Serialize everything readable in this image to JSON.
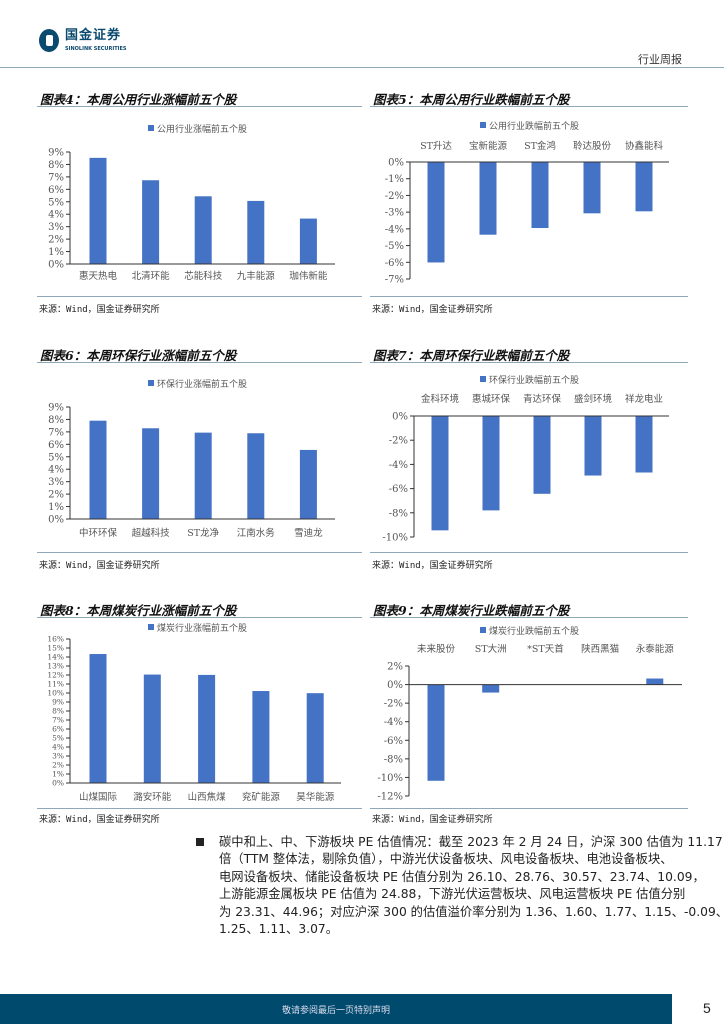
{
  "header": {
    "logo_cn": "国金证券",
    "logo_en": "SINOLINK SECURITIES",
    "doc_type": "行业周报"
  },
  "accent_color": "#4472c4",
  "chart_data": [
    {
      "type": "bar",
      "title": "图表4：本周公用行业涨幅前五个股",
      "legend": "公用行业涨幅前五个股",
      "categories": [
        "惠天热电",
        "北清环能",
        "芯能科技",
        "九丰能源",
        "珈伟新能"
      ],
      "values": [
        8.53,
        6.73,
        5.44,
        5.07,
        3.65
      ],
      "ylim": [
        0,
        9
      ],
      "ystep": 1,
      "unit": "%",
      "ticks": [
        "0%",
        "1%",
        "2%",
        "3%",
        "4%",
        "5%",
        "6%",
        "7%",
        "8%",
        "9%"
      ],
      "source": "来源：Wind，国金证券研究所"
    },
    {
      "type": "bar",
      "title": "图表5：本周公用行业跌幅前五个股",
      "legend": "公用行业跌幅前五个股",
      "categories": [
        "ST升达",
        "宝新能源",
        "ST金鸿",
        "聆达股份",
        "协鑫能科"
      ],
      "values": [
        -6.01,
        -4.35,
        -3.95,
        -3.07,
        -2.95
      ],
      "ylim": [
        -7,
        0
      ],
      "ystep": 1,
      "unit": "%",
      "ticks": [
        "-7%",
        "-6%",
        "-5%",
        "-4%",
        "-3%",
        "-2%",
        "-1%",
        "0%"
      ],
      "source": "来源：Wind，国金证券研究所"
    },
    {
      "type": "bar",
      "title": "图表6：本周环保行业涨幅前五个股",
      "legend": "环保行业涨幅前五个股",
      "categories": [
        "中环环保",
        "超越科技",
        "ST龙净",
        "江南水务",
        "雪迪龙"
      ],
      "values": [
        7.9,
        7.29,
        6.94,
        6.89,
        5.55
      ],
      "ylim": [
        0,
        9
      ],
      "ystep": 1,
      "unit": "%",
      "ticks": [
        "0%",
        "1%",
        "2%",
        "3%",
        "4%",
        "5%",
        "6%",
        "7%",
        "8%",
        "9%"
      ],
      "source": "来源：Wind，国金证券研究所"
    },
    {
      "type": "bar",
      "title": "图表7：本周环保行业跌幅前五个股",
      "legend": "环保行业跌幅前五个股",
      "categories": [
        "金科环境",
        "惠城环保",
        "青达环保",
        "盛剑环境",
        "祥龙电业"
      ],
      "values": [
        -9.45,
        -7.8,
        -6.43,
        -4.92,
        -4.67
      ],
      "ylim": [
        -10,
        0
      ],
      "ystep": 2,
      "unit": "%",
      "ticks": [
        "-10%",
        "-8%",
        "-6%",
        "-4%",
        "-2%",
        "0%"
      ],
      "source": "来源：Wind，国金证券研究所"
    },
    {
      "type": "bar",
      "title": "图表8：本周煤炭行业涨幅前五个股",
      "legend": "煤炭行业涨幅前五个股",
      "categories": [
        "山煤国际",
        "潞安环能",
        "山西焦煤",
        "兖矿能源",
        "昊华能源"
      ],
      "values": [
        14.33,
        12.05,
        12.01,
        10.22,
        9.98
      ],
      "ylim": [
        0,
        16
      ],
      "ystep": 1,
      "unit": "%",
      "ticks": [
        "0%",
        "1%",
        "2%",
        "3%",
        "4%",
        "5%",
        "6%",
        "7%",
        "8%",
        "9%",
        "10%",
        "11%",
        "12%",
        "13%",
        "14%",
        "15%",
        "16%"
      ],
      "source": "来源：Wind，国金证券研究所"
    },
    {
      "type": "bar",
      "title": "图表9：本周煤炭行业跌幅前五个股",
      "legend": "煤炭行业跌幅前五个股",
      "categories": [
        "未来股份",
        "ST大洲",
        "*ST天首",
        "陕西黑猫",
        "永泰能源"
      ],
      "values": [
        -10.36,
        -0.86,
        0,
        0,
        0.65
      ],
      "ylim": [
        -12,
        2
      ],
      "ystep": 2,
      "unit": "%",
      "ticks": [
        "-12%",
        "-10%",
        "-8%",
        "-6%",
        "-4%",
        "-2%",
        "0%",
        "2%"
      ],
      "source": "来源：Wind，国金证券研究所"
    }
  ],
  "paragraph": {
    "lines": [
      "碳中和上、中、下游板块 PE 估值情况：截至 2023 年 2 月 24 日，沪深 300 估值为 11.17",
      "倍（TTM 整体法，剔除负值），中游光伏设备板块、风电设备板块、电池设备板块、",
      "电网设备板块、储能设备板块 PE 估值分别为 26.10、28.76、30.57、23.74、10.09，",
      "上游能源金属板块 PE 估值为 24.88，下游光伏运营板块、风电运营板块 PE 估值分别",
      "为 23.31、44.96；对应沪深 300 的估值溢价率分别为 1.36、1.60、1.77、1.15、-0.09、",
      "1.25、1.11、3.07。"
    ]
  },
  "footer": {
    "disclaimer": "敬请参阅最后一页特别声明",
    "page_number": "5"
  }
}
